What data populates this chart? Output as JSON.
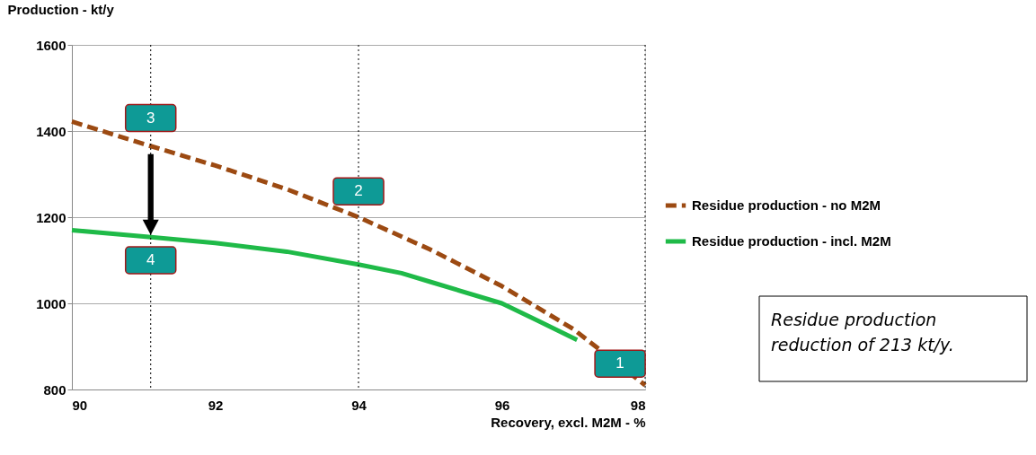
{
  "chart_data": {
    "type": "line",
    "xlabel": "Recovery, excl. M2M - %",
    "ylabel": "Production - kt/y",
    "series": [
      {
        "name": "Residue production - no M2M",
        "color": "#9c4a12",
        "line_style": "dashed",
        "x": [
          90,
          91,
          92,
          93,
          94,
          95,
          96,
          97,
          98
        ],
        "values": [
          1422,
          1370,
          1320,
          1265,
          1200,
          1125,
          1040,
          940,
          810
        ]
      },
      {
        "name": "Residue production - incl. M2M",
        "color": "#1fba48",
        "line_style": "solid",
        "x": [
          90,
          91,
          92,
          93,
          94,
          94.6,
          95,
          96,
          96.5,
          97.05
        ],
        "values": [
          1170,
          1155,
          1140,
          1120,
          1090,
          1070,
          1050,
          1000,
          960,
          915
        ]
      }
    ],
    "xlim": [
      90,
      98
    ],
    "xticks": [
      90,
      92,
      94,
      96,
      98
    ],
    "ylim": [
      800,
      1600
    ],
    "yticks": [
      800,
      1000,
      1200,
      1400,
      1600
    ],
    "grid": "y",
    "legend": "right",
    "marker": "none",
    "ref_lines": [
      {
        "axis": "x",
        "value": 91.1,
        "label": null,
        "line_style": "dotted",
        "color": "#000000"
      },
      {
        "axis": "x",
        "value": 94,
        "label": null,
        "line_style": "dotted",
        "color": "#000000"
      },
      {
        "axis": "x",
        "value": 98,
        "label": null,
        "line_style": "dotted",
        "color": "#000000"
      }
    ],
    "annotations": [
      {
        "text": "3",
        "x": 91.1,
        "y": 1430
      },
      {
        "text": "2",
        "x": 94,
        "y": 1260
      },
      {
        "text": "4",
        "x": 91.1,
        "y": 1100
      },
      {
        "text": "1",
        "x": 97.65,
        "y": 860
      },
      "Residue production reduction of 213 kt/y."
    ]
  }
}
